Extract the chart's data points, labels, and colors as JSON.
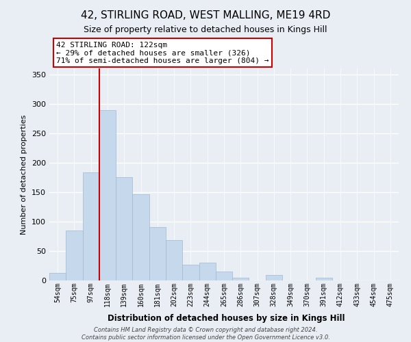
{
  "title": "42, STIRLING ROAD, WEST MALLING, ME19 4RD",
  "subtitle": "Size of property relative to detached houses in Kings Hill",
  "xlabel": "Distribution of detached houses by size in Kings Hill",
  "ylabel": "Number of detached properties",
  "bar_labels": [
    "54sqm",
    "75sqm",
    "97sqm",
    "118sqm",
    "139sqm",
    "160sqm",
    "181sqm",
    "202sqm",
    "223sqm",
    "244sqm",
    "265sqm",
    "286sqm",
    "307sqm",
    "328sqm",
    "349sqm",
    "370sqm",
    "391sqm",
    "412sqm",
    "433sqm",
    "454sqm",
    "475sqm"
  ],
  "bar_values": [
    13,
    85,
    184,
    289,
    175,
    146,
    91,
    69,
    27,
    30,
    15,
    5,
    0,
    9,
    0,
    0,
    5,
    0,
    0,
    0,
    0
  ],
  "bar_color": "#c6d9ec",
  "bar_edge_color": "#a0b8d0",
  "vline_x_index": 3,
  "vline_color": "#cc0000",
  "annotation_text": "42 STIRLING ROAD: 122sqm\n← 29% of detached houses are smaller (326)\n71% of semi-detached houses are larger (804) →",
  "annotation_box_color": "#ffffff",
  "annotation_box_edge_color": "#cc0000",
  "ylim": [
    0,
    360
  ],
  "yticks": [
    0,
    50,
    100,
    150,
    200,
    250,
    300,
    350
  ],
  "footer_line1": "Contains HM Land Registry data © Crown copyright and database right 2024.",
  "footer_line2": "Contains public sector information licensed under the Open Government Licence v3.0.",
  "bg_color": "#e8eef4",
  "plot_bg_color": "#e8eef4",
  "grid_color": "#ffffff",
  "title_fontsize": 11,
  "subtitle_fontsize": 9
}
